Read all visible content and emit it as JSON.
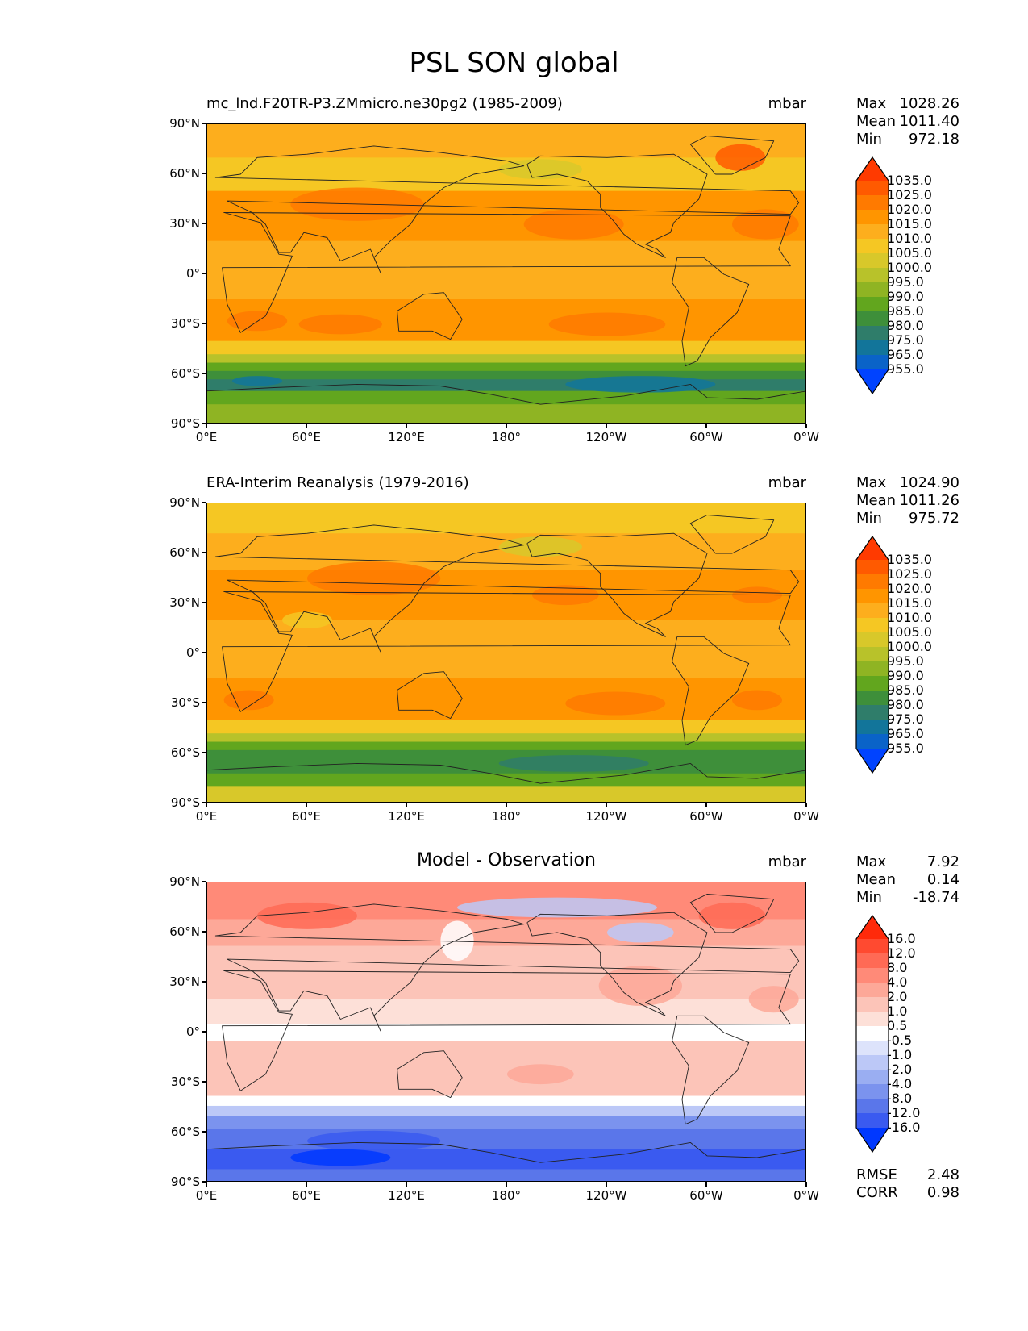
{
  "figure_title": "PSL SON global",
  "chart_data": [
    {
      "type": "heatmap",
      "panel": "test",
      "title": "mc_lnd.F20TR-P3.ZMmicro.ne30pg2 (1985-2009)",
      "units": "mbar",
      "xlabel": "",
      "ylabel": "",
      "x_ticks": [
        "0°E",
        "60°E",
        "120°E",
        "180°",
        "120°W",
        "60°W",
        "0°W"
      ],
      "y_ticks": [
        "90°N",
        "60°N",
        "30°N",
        "0°",
        "30°S",
        "60°S",
        "90°S"
      ],
      "xlim": [
        0,
        360
      ],
      "ylim": [
        -90,
        90
      ],
      "stats": {
        "max_label": "Max",
        "max": "1028.26",
        "mean_label": "Mean",
        "mean": "1011.40",
        "min_label": "Min",
        "min": "972.18"
      },
      "colorbar": {
        "levels": [
          "1035.0",
          "1025.0",
          "1020.0",
          "1015.0",
          "1010.0",
          "1005.0",
          "1000.0",
          "995.0",
          "990.0",
          "985.0",
          "980.0",
          "975.0",
          "965.0",
          "955.0"
        ],
        "colors": [
          "#ff3a00",
          "#ff5a00",
          "#ff7a00",
          "#ff9500",
          "#fdae1d",
          "#f5c723",
          "#d8c82a",
          "#b8c22a",
          "#8fb423",
          "#62a61e",
          "#3e8f3a",
          "#2f7d6a",
          "#12759a",
          "#0a63c8",
          "#0043ff"
        ]
      }
    },
    {
      "type": "heatmap",
      "panel": "reference",
      "title": "ERA-Interim Reanalysis (1979-2016)",
      "units": "mbar",
      "xlabel": "",
      "ylabel": "",
      "x_ticks": [
        "0°E",
        "60°E",
        "120°E",
        "180°",
        "120°W",
        "60°W",
        "0°W"
      ],
      "y_ticks": [
        "90°N",
        "60°N",
        "30°N",
        "0°",
        "30°S",
        "60°S",
        "90°S"
      ],
      "xlim": [
        0,
        360
      ],
      "ylim": [
        -90,
        90
      ],
      "stats": {
        "max_label": "Max",
        "max": "1024.90",
        "mean_label": "Mean",
        "mean": "1011.26",
        "min_label": "Min",
        "min": "975.72"
      },
      "colorbar": {
        "levels": [
          "1035.0",
          "1025.0",
          "1020.0",
          "1015.0",
          "1010.0",
          "1005.0",
          "1000.0",
          "995.0",
          "990.0",
          "985.0",
          "980.0",
          "975.0",
          "965.0",
          "955.0"
        ],
        "colors": [
          "#ff3a00",
          "#ff5a00",
          "#ff7a00",
          "#ff9500",
          "#fdae1d",
          "#f5c723",
          "#d8c82a",
          "#b8c22a",
          "#8fb423",
          "#62a61e",
          "#3e8f3a",
          "#2f7d6a",
          "#12759a",
          "#0a63c8",
          "#0043ff"
        ]
      }
    },
    {
      "type": "heatmap",
      "panel": "difference",
      "title": "Model - Observation",
      "units": "mbar",
      "xlabel": "",
      "ylabel": "",
      "x_ticks": [
        "0°E",
        "60°E",
        "120°E",
        "180°",
        "120°W",
        "60°W",
        "0°W"
      ],
      "y_ticks": [
        "90°N",
        "60°N",
        "30°N",
        "0°",
        "30°S",
        "60°S",
        "90°S"
      ],
      "xlim": [
        0,
        360
      ],
      "ylim": [
        -90,
        90
      ],
      "stats": {
        "max_label": "Max",
        "max": "7.92",
        "mean_label": "Mean",
        "mean": "0.14",
        "min_label": "Min",
        "min": "-18.74"
      },
      "extra": {
        "rmse_label": "RMSE",
        "rmse": "2.48",
        "corr_label": "CORR",
        "corr": "0.98"
      },
      "colorbar": {
        "levels": [
          "16.0",
          "12.0",
          "8.0",
          "4.0",
          "2.0",
          "1.0",
          "0.5",
          "-0.5",
          "-1.0",
          "-2.0",
          "-4.0",
          "-8.0",
          "-12.0",
          "-16.0"
        ],
        "colors": [
          "#ff2a0a",
          "#ff4a30",
          "#ff6a55",
          "#ff8a78",
          "#fda898",
          "#fcc4b8",
          "#fde0d8",
          "#ffffff",
          "#dde3fb",
          "#bcc8f7",
          "#9aaef2",
          "#7b93ee",
          "#5a76ea",
          "#3a5af0",
          "#0038ff"
        ]
      }
    }
  ]
}
